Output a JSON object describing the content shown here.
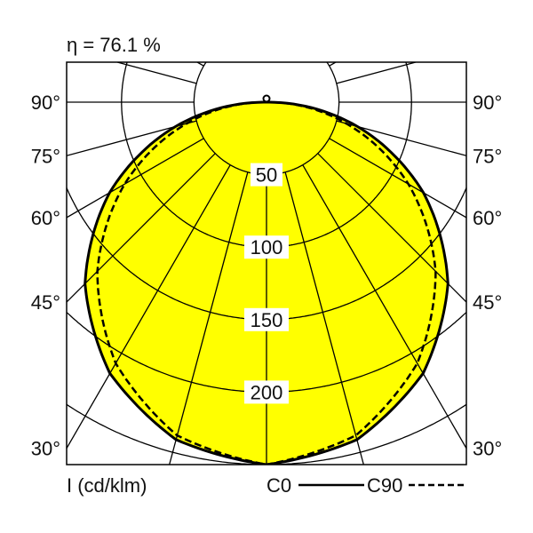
{
  "chart_data": {
    "type": "polar",
    "title": "η = 76.1 %",
    "unit_label": "I (cd/klm)",
    "radial_ticks": [
      50,
      100,
      150,
      200
    ],
    "radial_grid": [
      50,
      100,
      150,
      200,
      250
    ],
    "angle_ticks": [
      "90°",
      "75°",
      "60°",
      "45°",
      "30°"
    ],
    "angle_tick_values": [
      90,
      75,
      60,
      45,
      30
    ],
    "angles_deg": [
      0,
      15,
      30,
      45,
      60,
      75,
      90
    ],
    "series": [
      {
        "name": "C0",
        "style": "solid",
        "values": [
          250,
          241,
          216,
          177,
          125,
          65,
          2
        ]
      },
      {
        "name": "C90",
        "style": "dashed",
        "values": [
          250,
          238,
          208,
          165,
          113,
          57,
          2
        ]
      }
    ],
    "fill_color": "#ffff00",
    "line_color": "#000000"
  }
}
